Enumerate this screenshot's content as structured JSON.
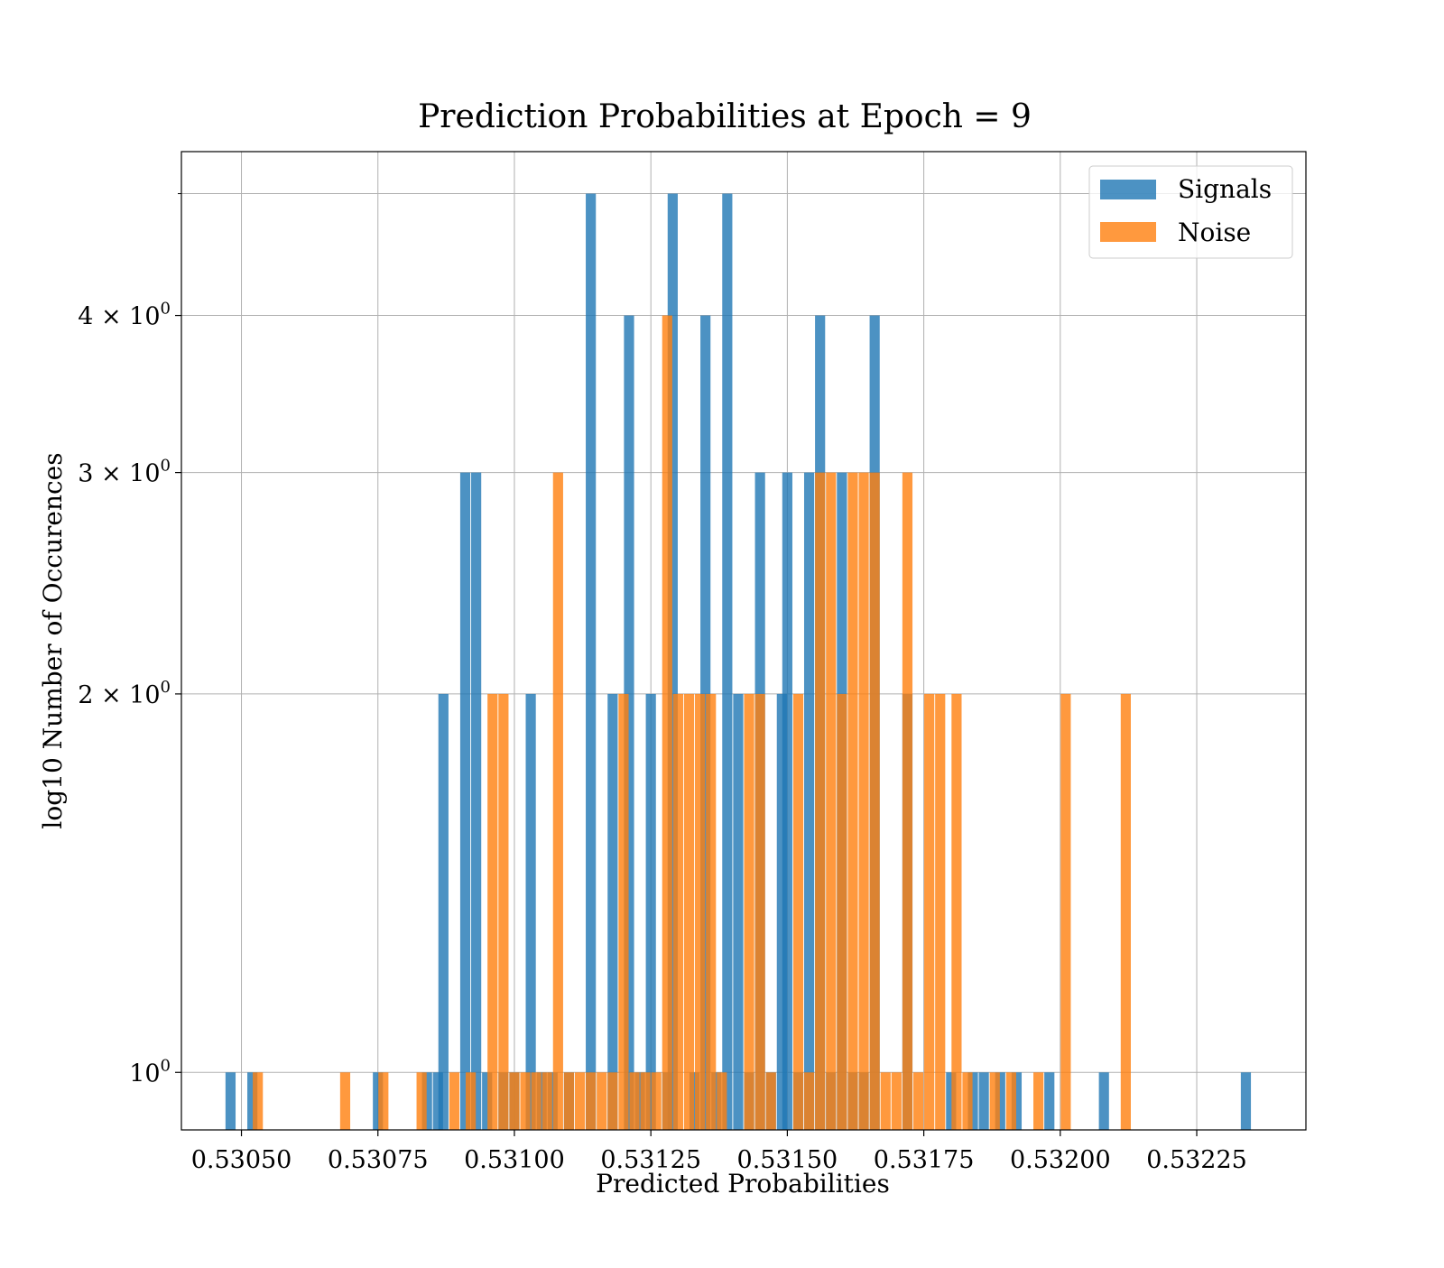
{
  "chart_data": {
    "type": "bar",
    "title": "Prediction Probabilities at Epoch = 9",
    "xlabel": "Predicted Probabilities",
    "ylabel": "log10 Number of Occurences",
    "yscale": "log",
    "grid": true,
    "legend_position": "top-right",
    "xlim": [
      0.53039,
      0.53245
    ],
    "ylim": [
      0.9,
      5.4
    ],
    "xticks": [
      0.5305,
      0.53075,
      0.531,
      0.53125,
      0.5315,
      0.53175,
      0.532,
      0.53225
    ],
    "xtick_labels": [
      "0.53050",
      "0.53075",
      "0.53100",
      "0.53125",
      "0.53150",
      "0.53175",
      "0.53200",
      "0.53225"
    ],
    "yticks": [
      1,
      2,
      3,
      4
    ],
    "ytick_labels": [
      "10",
      "2 × 10",
      "3 × 10",
      "4 × 10"
    ],
    "ytick_exponent": "0",
    "colors": {
      "Signals": "#1f77b4",
      "Noise": "#ff7f0e"
    },
    "bar_alpha": 0.8,
    "series": [
      {
        "name": "Signals",
        "bin_width": 1.85e-05,
        "bins": [
          [
            0.53048,
            1
          ],
          [
            0.53052,
            1
          ],
          [
            0.53075,
            1
          ],
          [
            0.53084,
            1
          ],
          [
            0.53086,
            1
          ],
          [
            0.53087,
            2
          ],
          [
            0.53091,
            3
          ],
          [
            0.53093,
            3
          ],
          [
            0.53095,
            1
          ],
          [
            0.53098,
            1
          ],
          [
            0.531,
            1
          ],
          [
            0.53103,
            2
          ],
          [
            0.53105,
            1
          ],
          [
            0.53107,
            1
          ],
          [
            0.5311,
            1
          ],
          [
            0.53114,
            5
          ],
          [
            0.53118,
            2
          ],
          [
            0.53121,
            4
          ],
          [
            0.53123,
            1
          ],
          [
            0.53125,
            2
          ],
          [
            0.53128,
            1
          ],
          [
            0.53129,
            5
          ],
          [
            0.53133,
            1
          ],
          [
            0.53135,
            4
          ],
          [
            0.53137,
            1
          ],
          [
            0.53139,
            5
          ],
          [
            0.53141,
            2
          ],
          [
            0.53143,
            1
          ],
          [
            0.53145,
            3
          ],
          [
            0.53147,
            1
          ],
          [
            0.53149,
            2
          ],
          [
            0.5315,
            3
          ],
          [
            0.53152,
            1
          ],
          [
            0.53154,
            3
          ],
          [
            0.53156,
            4
          ],
          [
            0.53158,
            1
          ],
          [
            0.5316,
            3
          ],
          [
            0.53162,
            1
          ],
          [
            0.53164,
            1
          ],
          [
            0.53166,
            4
          ],
          [
            0.53172,
            2
          ],
          [
            0.5318,
            1
          ],
          [
            0.53184,
            1
          ],
          [
            0.53186,
            1
          ],
          [
            0.53189,
            1
          ],
          [
            0.53192,
            1
          ],
          [
            0.53198,
            1
          ],
          [
            0.53208,
            1
          ],
          [
            0.53234,
            1
          ]
        ]
      },
      {
        "name": "Noise",
        "bin_width": 1.85e-05,
        "bins": [
          [
            0.53053,
            1
          ],
          [
            0.53069,
            1
          ],
          [
            0.53076,
            1
          ],
          [
            0.53083,
            1
          ],
          [
            0.53089,
            1
          ],
          [
            0.53092,
            1
          ],
          [
            0.53096,
            2
          ],
          [
            0.53098,
            2
          ],
          [
            0.531,
            1
          ],
          [
            0.53102,
            1
          ],
          [
            0.53104,
            1
          ],
          [
            0.53106,
            1
          ],
          [
            0.53108,
            3
          ],
          [
            0.5311,
            1
          ],
          [
            0.53112,
            1
          ],
          [
            0.53114,
            1
          ],
          [
            0.53116,
            1
          ],
          [
            0.53118,
            1
          ],
          [
            0.5312,
            2
          ],
          [
            0.53122,
            1
          ],
          [
            0.53124,
            1
          ],
          [
            0.53126,
            1
          ],
          [
            0.53128,
            4
          ],
          [
            0.5313,
            2
          ],
          [
            0.53132,
            2
          ],
          [
            0.53134,
            2
          ],
          [
            0.53136,
            2
          ],
          [
            0.53138,
            1
          ],
          [
            0.53143,
            2
          ],
          [
            0.53145,
            2
          ],
          [
            0.53147,
            1
          ],
          [
            0.53152,
            2
          ],
          [
            0.53154,
            1
          ],
          [
            0.53156,
            3
          ],
          [
            0.53158,
            3
          ],
          [
            0.5316,
            2
          ],
          [
            0.53162,
            3
          ],
          [
            0.53164,
            3
          ],
          [
            0.53166,
            3
          ],
          [
            0.53168,
            1
          ],
          [
            0.5317,
            1
          ],
          [
            0.53172,
            3
          ],
          [
            0.53174,
            1
          ],
          [
            0.53176,
            2
          ],
          [
            0.53178,
            2
          ],
          [
            0.53181,
            2
          ],
          [
            0.53183,
            1
          ],
          [
            0.53188,
            1
          ],
          [
            0.53191,
            1
          ],
          [
            0.53196,
            1
          ],
          [
            0.53201,
            2
          ],
          [
            0.53212,
            2
          ]
        ]
      }
    ]
  }
}
